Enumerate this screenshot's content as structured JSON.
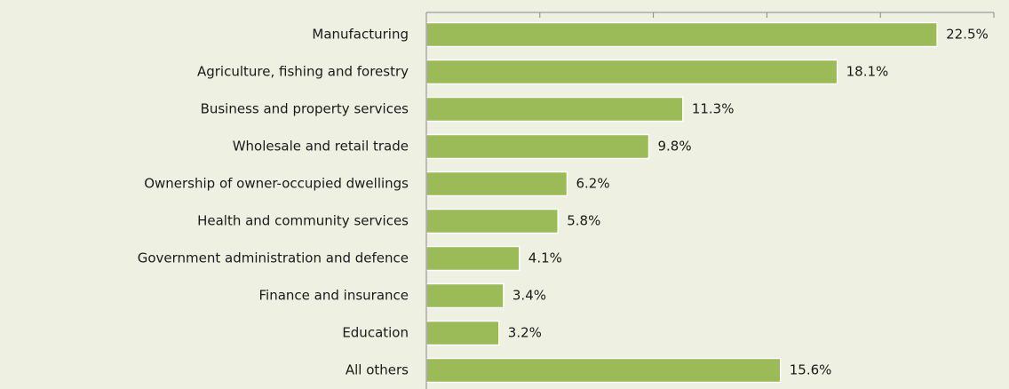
{
  "chart_data": {
    "type": "bar",
    "orientation": "horizontal",
    "categories": [
      "Manufacturing",
      "Agriculture, fishing and forestry",
      "Business and property services",
      "Wholesale and retail trade",
      "Ownership of owner-occupied dwellings",
      "Health and community services",
      "Government administration and defence",
      "Finance and insurance",
      "Education",
      "All others"
    ],
    "values": [
      22.5,
      18.1,
      11.3,
      9.8,
      6.2,
      5.8,
      4.1,
      3.4,
      3.2,
      15.6
    ],
    "value_labels": [
      "22.5%",
      "18.1%",
      "11.3%",
      "9.8%",
      "6.2%",
      "5.8%",
      "4.1%",
      "3.4%",
      "3.2%",
      "15.6%"
    ],
    "color": "#9bbb59",
    "xlim": [
      0,
      25
    ],
    "xticks": [
      0,
      5,
      10,
      15,
      20,
      25
    ]
  }
}
